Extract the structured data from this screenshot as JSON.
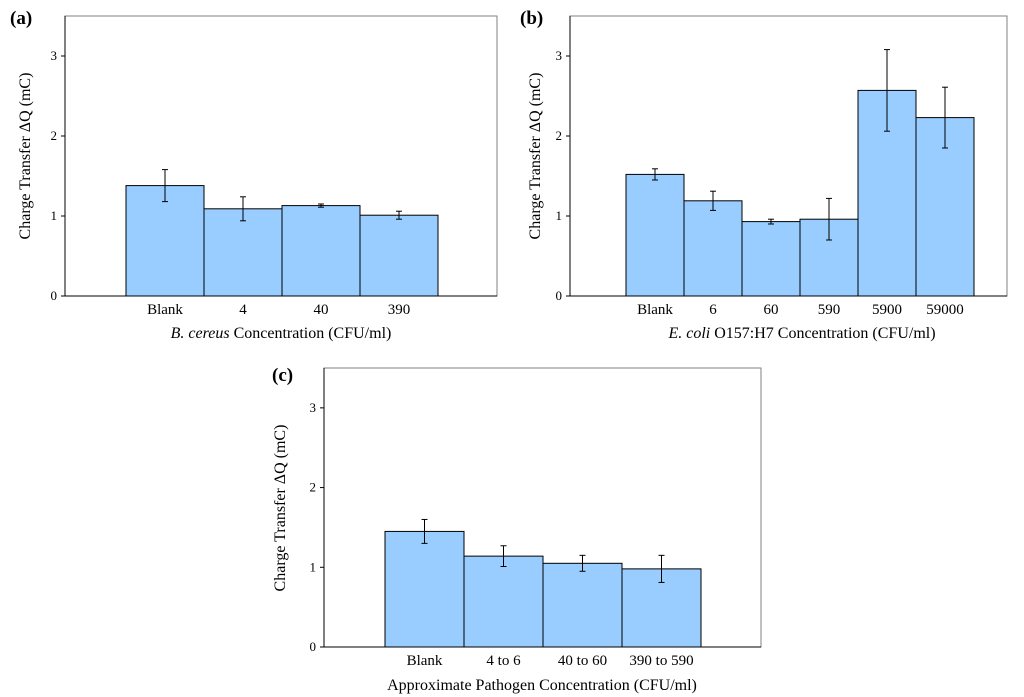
{
  "bar_color": "#99ccff",
  "chart_data": [
    {
      "type": "bar",
      "panel_label": "(a)",
      "categories": [
        "Blank",
        "4",
        "40",
        "390"
      ],
      "values": [
        1.38,
        1.09,
        1.13,
        1.01
      ],
      "errors": [
        0.2,
        0.15,
        0.02,
        0.05
      ],
      "xlabel_italic": "B. cereus",
      "xlabel_rest": " Concentration (CFU/ml)",
      "ylabel": "Charge Transfer ΔQ (mC)",
      "ylim": [
        0,
        3.5
      ],
      "yticks": [
        "0",
        "1",
        "2",
        "3"
      ],
      "grid": false
    },
    {
      "type": "bar",
      "panel_label": "(b)",
      "categories": [
        "Blank",
        "6",
        "60",
        "590",
        "5900",
        "59000"
      ],
      "values": [
        1.52,
        1.19,
        0.93,
        0.96,
        2.57,
        2.23
      ],
      "errors": [
        0.07,
        0.12,
        0.03,
        0.26,
        0.51,
        0.38
      ],
      "xlabel_italic": "E. coli",
      "xlabel_rest": " O157:H7 Concentration (CFU/ml)",
      "ylabel": "Charge Transfer ΔQ (mC)",
      "ylim": [
        0,
        3.5
      ],
      "yticks": [
        "0",
        "1",
        "2",
        "3"
      ],
      "grid": false
    },
    {
      "type": "bar",
      "panel_label": "(c)",
      "categories": [
        "Blank",
        "4 to 6",
        "40 to 60",
        "390 to 590"
      ],
      "values": [
        1.45,
        1.14,
        1.05,
        0.98
      ],
      "errors": [
        0.15,
        0.13,
        0.1,
        0.17
      ],
      "xlabel_italic": "",
      "xlabel_rest": "Approximate Pathogen Concentration (CFU/ml)",
      "ylabel": "Charge Transfer ΔQ (mC)",
      "ylim": [
        0,
        3.5
      ],
      "yticks": [
        "0",
        "1",
        "2",
        "3"
      ],
      "grid": false
    }
  ]
}
